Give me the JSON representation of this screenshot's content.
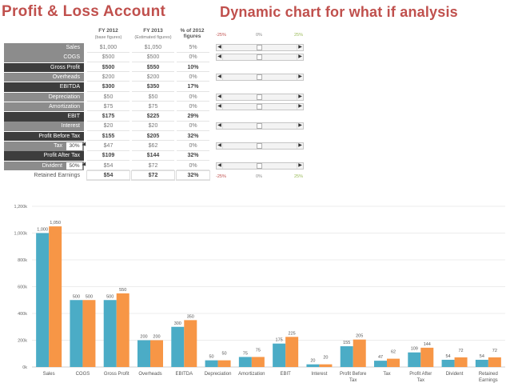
{
  "titles": {
    "left": "Profit & Loss Account",
    "right": "Dynamic chart for what if analysis"
  },
  "columns": {
    "fy2012": "FY 2012",
    "fy2012_sub": "(base figures)",
    "fy2013": "FY 2013",
    "fy2013_sub": "(Estimated figures)",
    "pct": "% of 2012",
    "pct_sub": "figures"
  },
  "rows": [
    {
      "label": "Sales",
      "v2012": "$1,000",
      "v2013": "$1,050",
      "pct": "5%",
      "style": "light",
      "bold": false,
      "slider": true
    },
    {
      "label": "COGS",
      "v2012": "$500",
      "v2013": "$500",
      "pct": "0%",
      "style": "light",
      "bold": false,
      "slider": true
    },
    {
      "label": "Gross Profit",
      "v2012": "$500",
      "v2013": "$550",
      "pct": "10%",
      "style": "dark",
      "bold": true,
      "slider": false
    },
    {
      "label": "Overheads",
      "v2012": "$200",
      "v2013": "$200",
      "pct": "0%",
      "style": "light",
      "bold": false,
      "slider": true
    },
    {
      "label": "EBITDA",
      "v2012": "$300",
      "v2013": "$350",
      "pct": "17%",
      "style": "dark",
      "bold": true,
      "slider": false
    },
    {
      "label": "Depreciation",
      "v2012": "$50",
      "v2013": "$50",
      "pct": "0%",
      "style": "light",
      "bold": false,
      "slider": true
    },
    {
      "label": "Amortization",
      "v2012": "$75",
      "v2013": "$75",
      "pct": "0%",
      "style": "light",
      "bold": false,
      "slider": true
    },
    {
      "label": "EBIT",
      "v2012": "$175",
      "v2013": "$225",
      "pct": "29%",
      "style": "dark",
      "bold": true,
      "slider": false
    },
    {
      "label": "Interest",
      "v2012": "$20",
      "v2013": "$20",
      "pct": "0%",
      "style": "light",
      "bold": false,
      "slider": true
    },
    {
      "label": "Profit Before Tax",
      "v2012": "$155",
      "v2013": "$205",
      "pct": "32%",
      "style": "dark",
      "bold": true,
      "slider": false
    },
    {
      "label": "Tax",
      "rate": "30%",
      "v2012": "$47",
      "v2013": "$62",
      "pct": "0%",
      "style": "light",
      "bold": false,
      "slider": true
    },
    {
      "label": "Profit After Tax",
      "v2012": "$109",
      "v2013": "$144",
      "pct": "32%",
      "style": "dark",
      "bold": true,
      "slider": false
    },
    {
      "label": "Divident",
      "rate": "50%",
      "v2012": "$54",
      "v2013": "$72",
      "pct": "0%",
      "style": "light",
      "bold": false,
      "slider": true
    },
    {
      "label": "Retained Earnings",
      "v2012": "$54",
      "v2013": "$72",
      "pct": "32%",
      "style": "white",
      "bold": true,
      "slider": false
    }
  ],
  "slider_scale": {
    "min": "-25%",
    "mid": "0%",
    "max": "25%"
  },
  "chart_data": {
    "type": "bar",
    "categories": [
      "Sales",
      "COGS",
      "Gross Profit",
      "Overheads",
      "EBITDA",
      "Depreciation",
      "Amortization",
      "EBIT",
      "Interest",
      "Profit Before Tax",
      "Tax",
      "Profit After Tax",
      "Divident",
      "Retained Earnings"
    ],
    "series": [
      {
        "values": [
          1000,
          500,
          500,
          200,
          300,
          50,
          75,
          175,
          20,
          155,
          47,
          109,
          54,
          54
        ],
        "color": "#4bacc6"
      },
      {
        "values": [
          1050,
          500,
          550,
          200,
          350,
          50,
          75,
          225,
          20,
          205,
          62,
          144,
          72,
          72
        ],
        "color": "#f79646"
      }
    ],
    "data_labels": [
      [
        "1,000",
        "500",
        "500",
        "200",
        "300",
        "50",
        "75",
        "175",
        "20",
        "155",
        "47",
        "109",
        "54",
        "54"
      ],
      [
        "1,050",
        "500",
        "550",
        "200",
        "350",
        "50",
        "75",
        "225",
        "20",
        "205",
        "62",
        "144",
        "72",
        "72"
      ]
    ],
    "y_ticks": [
      "0k",
      "200k",
      "400k",
      "600k",
      "800k",
      "1,000k",
      "1,200k"
    ],
    "ylim": [
      0,
      1200
    ],
    "grid": true,
    "legend": "none"
  }
}
